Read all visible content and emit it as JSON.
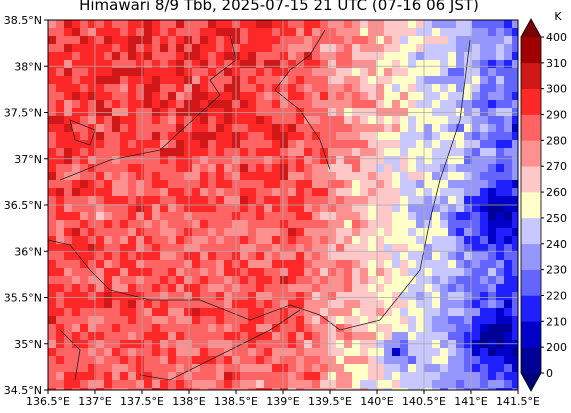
{
  "map": {
    "title": "Himawari 8/9 Tbb, 2025-07-15 21 UTC (07-16 06 JST)",
    "lon_ticks": [
      {
        "value": 136.5,
        "label": "136.5°E"
      },
      {
        "value": 137,
        "label": "137°E"
      },
      {
        "value": 137.5,
        "label": "137.5°E"
      },
      {
        "value": 138,
        "label": "138°E"
      },
      {
        "value": 138.5,
        "label": "138.5°E"
      },
      {
        "value": 139,
        "label": "139°E"
      },
      {
        "value": 139.5,
        "label": "139.5°E"
      },
      {
        "value": 140,
        "label": "140°E"
      },
      {
        "value": 140.5,
        "label": "140.5°E"
      },
      {
        "value": 141,
        "label": "141°E"
      },
      {
        "value": 141.5,
        "label": "141.5°E"
      }
    ],
    "lat_ticks": [
      {
        "value": 34.5,
        "label": "34.5°N"
      },
      {
        "value": 35,
        "label": "35°N"
      },
      {
        "value": 35.5,
        "label": "35.5°N"
      },
      {
        "value": 36,
        "label": "36°N"
      },
      {
        "value": 36.5,
        "label": "36.5°N"
      },
      {
        "value": 37,
        "label": "37°N"
      },
      {
        "value": 37.5,
        "label": "37.5°N"
      },
      {
        "value": 38,
        "label": "38°N"
      },
      {
        "value": 38.5,
        "label": "38.5°N"
      }
    ],
    "grid": true,
    "colorbar": {
      "unit": "K",
      "ticks": [
        0,
        200,
        210,
        220,
        230,
        240,
        250,
        260,
        270,
        280,
        290,
        300,
        310,
        400
      ],
      "colors": [
        "#000096",
        "#0000c8",
        "#2020ff",
        "#6464ff",
        "#9696ff",
        "#c8c8ff",
        "#ffffc8",
        "#ffc8c8",
        "#ff9090",
        "#ff6464",
        "#ff2828",
        "#d01818",
        "#a00000"
      ],
      "under_color": "#000078",
      "over_color": "#780000"
    }
  }
}
